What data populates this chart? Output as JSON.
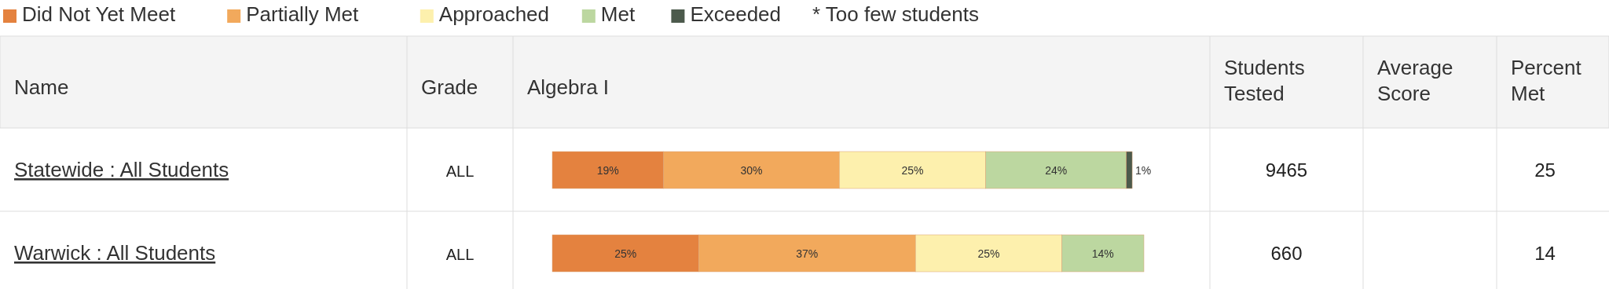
{
  "chart_data": {
    "type": "bar",
    "orientation": "horizontal",
    "stacked": true,
    "title": "Algebra I",
    "ylabel": "Name",
    "legend": "top left",
    "categories": [
      "Statewide : All Students",
      "Warwick : All Students"
    ],
    "series": [
      {
        "name": "Did Not Yet Meet",
        "color": "#e4823f",
        "values": [
          19,
          25
        ],
        "value_labels": [
          "19%",
          "25%"
        ]
      },
      {
        "name": "Partially Met",
        "color": "#f2a95c",
        "values": [
          30,
          37
        ],
        "value_labels": [
          "30%",
          "37%"
        ]
      },
      {
        "name": "Approached",
        "color": "#fdf0ad",
        "values": [
          25,
          25
        ],
        "value_labels": [
          "25%",
          "25%"
        ]
      },
      {
        "name": "Met",
        "color": "#bcd7a0",
        "values": [
          24,
          14
        ],
        "value_labels": [
          "24%",
          "14%"
        ]
      },
      {
        "name": "Exceeded",
        "color": "#4c5a4c",
        "values": [
          1,
          null
        ],
        "value_labels": [
          "1%",
          null
        ]
      }
    ],
    "annotations": [
      "* Too few students",
      "Grade",
      "Students Tested",
      "Average Score",
      "Percent Met",
      "ALL",
      "9465",
      "25",
      "ALL",
      "660",
      "14"
    ]
  }
}
